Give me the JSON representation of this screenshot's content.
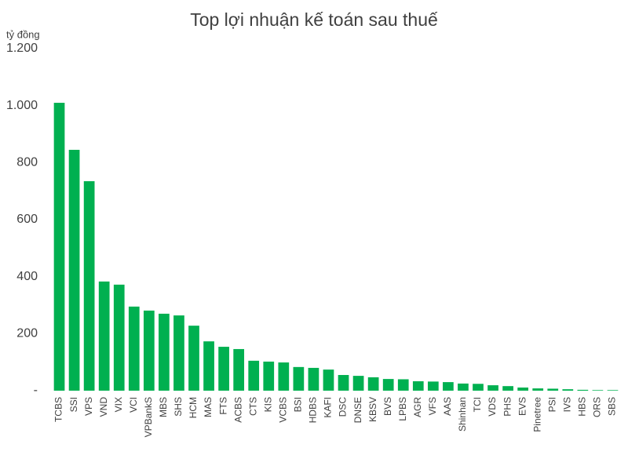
{
  "chart_data": {
    "type": "bar",
    "title": "Top lợi nhuận kế toán sau thuế",
    "y_unit": "tỷ đồng",
    "categories": [
      "TCBS",
      "SSI",
      "VPS",
      "VND",
      "VIX",
      "VCI",
      "VPBankS",
      "MBS",
      "SHS",
      "HCM",
      "MAS",
      "FTS",
      "ACBS",
      "CTS",
      "KIS",
      "VCBS",
      "BSI",
      "HDBS",
      "KAFI",
      "DSC",
      "DNSE",
      "KBSV",
      "BVS",
      "LPBS",
      "AGR",
      "VFS",
      "AAS",
      "Shinhan",
      "TCI",
      "VDS",
      "PHS",
      "EVS",
      "Pinetree",
      "PSI",
      "IVS",
      "HBS",
      "ORS",
      "SBS"
    ],
    "values": [
      1010,
      845,
      735,
      383,
      372,
      295,
      281,
      270,
      264,
      228,
      173,
      154,
      146,
      105,
      102,
      99,
      83,
      80,
      74,
      55,
      52,
      47,
      41,
      40,
      33,
      32,
      30,
      25,
      24,
      19,
      16,
      11,
      8,
      7,
      5,
      3,
      2,
      2
    ],
    "color": "#00b050",
    "ylim": [
      0,
      1200
    ],
    "yticks": [
      {
        "value": 0,
        "label": "-"
      },
      200,
      400,
      600,
      800,
      {
        "value": 1000,
        "label": "1.000"
      },
      {
        "value": 1200,
        "label": "1.200"
      }
    ],
    "grid": false
  }
}
